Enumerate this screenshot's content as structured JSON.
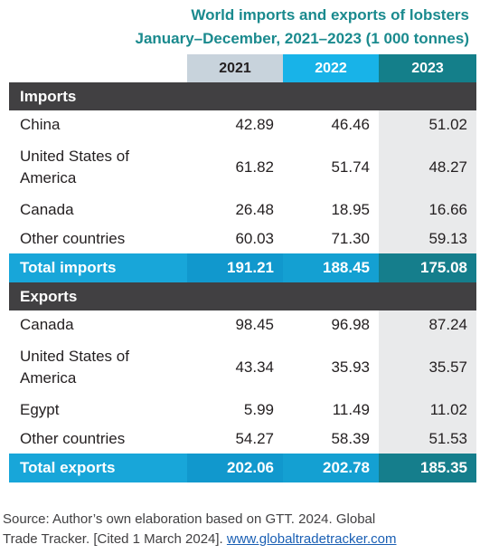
{
  "title": {
    "line1": "World imports and exports of lobsters",
    "line2": "January–December, 2021–2023 (1 000 tonnes)"
  },
  "columns": [
    "2021",
    "2022",
    "2023"
  ],
  "imports": {
    "heading": "Imports",
    "rows": [
      {
        "label": "China",
        "values": [
          "42.89",
          "46.46",
          "51.02"
        ]
      },
      {
        "label": "United States of America",
        "values": [
          "61.82",
          "51.74",
          "48.27"
        ]
      },
      {
        "label": "Canada",
        "values": [
          "26.48",
          "18.95",
          "16.66"
        ]
      },
      {
        "label": "Other countries",
        "values": [
          "60.03",
          "71.30",
          "59.13"
        ]
      }
    ],
    "total": {
      "label": "Total imports",
      "values": [
        "191.21",
        "188.45",
        "175.08"
      ]
    }
  },
  "exports": {
    "heading": "Exports",
    "rows": [
      {
        "label": "Canada",
        "values": [
          "98.45",
          "96.98",
          "87.24"
        ]
      },
      {
        "label": "United States of America",
        "values": [
          "43.34",
          "35.93",
          "35.57"
        ]
      },
      {
        "label": "Egypt",
        "values": [
          "5.99",
          "11.49",
          "11.02"
        ]
      },
      {
        "label": "Other countries",
        "values": [
          "54.27",
          "58.39",
          "51.53"
        ]
      }
    ],
    "total": {
      "label": "Total exports",
      "values": [
        "202.06",
        "202.78",
        "185.35"
      ]
    }
  },
  "source": {
    "text_line1": "Source: Author’s own elaboration based on GTT. 2024. Global",
    "text_line2": "Trade Tracker. [Cited 1 March 2024]. ",
    "link": "www.globaltradetracker.com"
  },
  "colors": {
    "title": "#1a8a8e",
    "section_bg": "#414042",
    "total_bg": "#18a6d9",
    "col2021": "#c8d3dc",
    "col2022": "#18b3e8",
    "col2023": "#147f8a"
  }
}
